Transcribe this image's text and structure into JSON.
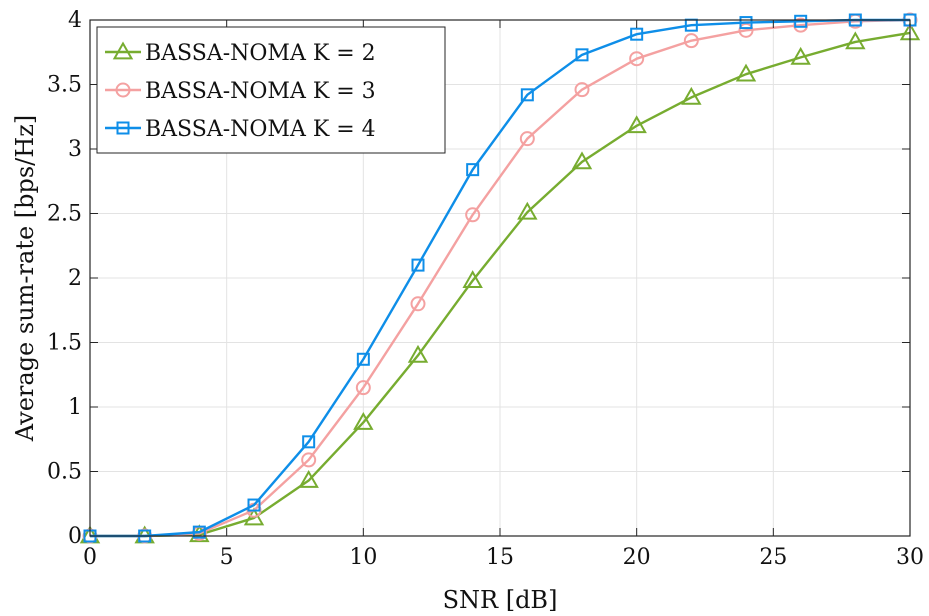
{
  "chart_data": {
    "type": "line",
    "xlabel": "SNR [dB]",
    "ylabel": "Average sum-rate [bps/Hz]",
    "xlim": [
      0,
      30
    ],
    "ylim": [
      0,
      4
    ],
    "xticks": [
      0,
      5,
      10,
      15,
      20,
      25,
      30
    ],
    "yticks": [
      0,
      0.5,
      1,
      1.5,
      2,
      2.5,
      3,
      3.5,
      4
    ],
    "grid": true,
    "legend_position": "top-left",
    "x": [
      0,
      2,
      4,
      6,
      8,
      10,
      12,
      14,
      16,
      18,
      20,
      22,
      24,
      26,
      28,
      30
    ],
    "series": [
      {
        "name": "BASSA-NOMA K = 2",
        "color": "#77ac30",
        "marker": "triangle",
        "values": [
          0.0,
          0.0,
          0.01,
          0.14,
          0.43,
          0.88,
          1.4,
          1.98,
          2.51,
          2.9,
          3.18,
          3.4,
          3.58,
          3.71,
          3.83,
          3.9
        ]
      },
      {
        "name": "BASSA-NOMA K = 3",
        "color": "#f4a1a1",
        "marker": "circle",
        "values": [
          0.0,
          0.0,
          0.02,
          0.2,
          0.59,
          1.15,
          1.8,
          2.49,
          3.08,
          3.46,
          3.7,
          3.84,
          3.92,
          3.96,
          3.99,
          4.0
        ]
      },
      {
        "name": "BASSA-NOMA K = 4",
        "color": "#0e8ee8",
        "marker": "square",
        "values": [
          0.0,
          0.0,
          0.03,
          0.24,
          0.73,
          1.37,
          2.1,
          2.84,
          3.42,
          3.73,
          3.89,
          3.96,
          3.98,
          3.99,
          4.0,
          4.0
        ]
      }
    ]
  }
}
